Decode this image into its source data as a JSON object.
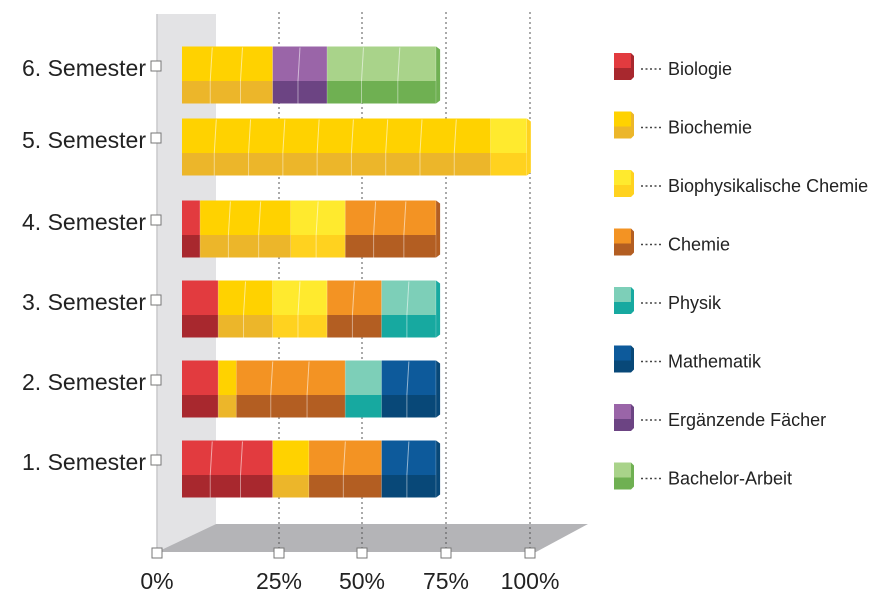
{
  "chart_data": {
    "type": "bar",
    "stacked": true,
    "orientation": "horizontal",
    "style": "3d-blocks",
    "xlim": [
      0,
      100
    ],
    "x_ticks": [
      "0%",
      "25%",
      "50%",
      "75%",
      "100%"
    ],
    "categories": [
      "6. Semester",
      "5. Semester",
      "4. Semester",
      "3. Semester",
      "2. Semester",
      "1. Semester"
    ],
    "series": [
      {
        "name": "Biologie",
        "color": "#e23b3f",
        "dark": "#a8282e",
        "values": [
          0,
          0,
          5,
          10,
          10,
          25
        ]
      },
      {
        "name": "Biochemie",
        "color": "#ffd200",
        "dark": "#ecb62a",
        "values": [
          25,
          85,
          25,
          15,
          5,
          10
        ]
      },
      {
        "name": "Biophysikalische Chemie",
        "color": "#ffea2e",
        "dark": "#ffd21f",
        "values": [
          0,
          10,
          15,
          15,
          0,
          0
        ]
      },
      {
        "name": "Chemie",
        "color": "#f39323",
        "dark": "#b35e22",
        "values": [
          0,
          0,
          25,
          15,
          30,
          20
        ]
      },
      {
        "name": "Physik",
        "color": "#7dcfb8",
        "dark": "#17a9a0",
        "values": [
          0,
          0,
          0,
          15,
          10,
          0
        ]
      },
      {
        "name": "Mathematik",
        "color": "#0d5a9b",
        "dark": "#084878",
        "values": [
          0,
          0,
          0,
          0,
          15,
          15
        ]
      },
      {
        "name": "Ergänzende Fächer",
        "color": "#9a65a8",
        "dark": "#6c4483",
        "values": [
          15,
          0,
          0,
          0,
          0,
          0
        ]
      },
      {
        "name": "Bachelor-Arbeit",
        "color": "#a9d38a",
        "dark": "#6fb052",
        "values": [
          30,
          0,
          0,
          0,
          0,
          0
        ]
      }
    ],
    "legend_position": "right",
    "grid": "dotted vertical lines at 25%, 50%, 75%, 100%"
  }
}
